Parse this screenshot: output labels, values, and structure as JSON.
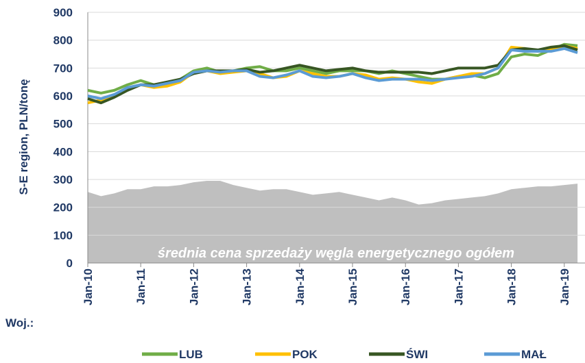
{
  "chart_data": {
    "type": "line",
    "ylabel": "S-E region, PLN/tonę",
    "annotation": "średnia cena sprzedaży węgla energetycznego ogółem",
    "legend_title": "Woj.:",
    "categories": [
      "Jan-10",
      null,
      null,
      null,
      "Jan-11",
      null,
      null,
      null,
      "Jan-12",
      null,
      null,
      null,
      "Jan-13",
      null,
      null,
      null,
      "Jan-14",
      null,
      null,
      null,
      "Jan-15",
      null,
      null,
      null,
      "Jan-16",
      null,
      null,
      null,
      "Jan-17",
      null,
      null,
      null,
      "Jan-18",
      null,
      null,
      null,
      "Jan-19",
      null
    ],
    "ylim": [
      0,
      900
    ],
    "yticks": [
      0,
      100,
      200,
      300,
      400,
      500,
      600,
      700,
      800,
      900
    ],
    "grid": true,
    "area": {
      "color": "#bfbfbf",
      "values": [
        255,
        240,
        250,
        265,
        265,
        275,
        275,
        280,
        290,
        295,
        295,
        280,
        270,
        260,
        265,
        265,
        255,
        245,
        250,
        255,
        245,
        235,
        225,
        235,
        225,
        210,
        215,
        225,
        230,
        235,
        240,
        250,
        265,
        270,
        275,
        275,
        280,
        285
      ]
    },
    "series": [
      {
        "name": "LUB",
        "color": "#70ad47",
        "values": [
          620,
          610,
          620,
          640,
          655,
          640,
          645,
          660,
          690,
          700,
          685,
          690,
          700,
          705,
          690,
          690,
          700,
          690,
          680,
          690,
          690,
          690,
          680,
          690,
          680,
          670,
          660,
          660,
          670,
          675,
          665,
          680,
          740,
          750,
          745,
          765,
          785,
          780
        ]
      },
      {
        "name": "POK",
        "color": "#ffc000",
        "values": [
          575,
          585,
          600,
          625,
          640,
          630,
          635,
          650,
          685,
          690,
          680,
          685,
          690,
          680,
          665,
          670,
          690,
          680,
          670,
          670,
          680,
          675,
          660,
          665,
          660,
          650,
          645,
          660,
          670,
          680,
          680,
          700,
          775,
          770,
          760,
          770,
          780,
          770
        ]
      },
      {
        "name": "ŚWI",
        "color": "#375623",
        "values": [
          590,
          575,
          595,
          620,
          640,
          640,
          650,
          660,
          680,
          690,
          690,
          690,
          695,
          685,
          690,
          700,
          710,
          700,
          690,
          695,
          700,
          690,
          685,
          685,
          685,
          685,
          680,
          690,
          700,
          700,
          700,
          710,
          765,
          770,
          765,
          775,
          780,
          765
        ]
      },
      {
        "name": "MAŁ",
        "color": "#5b9bd5",
        "values": [
          600,
          590,
          605,
          630,
          640,
          635,
          645,
          655,
          685,
          690,
          685,
          690,
          690,
          670,
          665,
          675,
          690,
          670,
          665,
          670,
          680,
          665,
          655,
          660,
          660,
          660,
          655,
          660,
          665,
          670,
          680,
          700,
          765,
          760,
          760,
          760,
          770,
          755
        ]
      }
    ]
  }
}
